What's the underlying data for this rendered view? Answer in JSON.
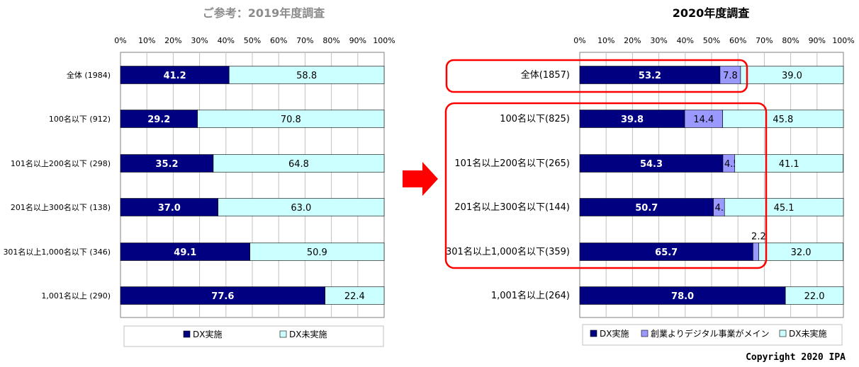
{
  "chart_data": [
    {
      "type": "bar",
      "orientation": "horizontal",
      "stacked": true,
      "title": "ご参考：2019年度調査",
      "x_ticks": [
        "0%",
        "10%",
        "20%",
        "30%",
        "40%",
        "50%",
        "60%",
        "70%",
        "80%",
        "90%",
        "100%"
      ],
      "xlim": [
        0,
        100
      ],
      "grid": true,
      "categories": [
        "全体 (1984)",
        "100名以下 (912)",
        "101名以上200名以下 (298)",
        "201名以上300名以下 (138)",
        "301名以上1,000名以下 (346)",
        "1,001名以上 (290)"
      ],
      "series": [
        {
          "name": "DX実施",
          "color": "#000080",
          "values": [
            41.2,
            29.2,
            35.2,
            37.0,
            49.1,
            77.6
          ],
          "labels": [
            "41.2",
            "29.2",
            "35.2",
            "37.0",
            "49.1",
            "77.6"
          ]
        },
        {
          "name": "DX未実施",
          "color": "#ccffff",
          "values": [
            58.8,
            70.8,
            64.8,
            63.0,
            50.9,
            22.4
          ],
          "labels": [
            "58.8",
            "70.8",
            "64.8",
            "63.0",
            "50.9",
            "22.4"
          ]
        }
      ],
      "legend_position": "bottom"
    },
    {
      "type": "bar",
      "orientation": "horizontal",
      "stacked": true,
      "title": "2020年度調査",
      "x_ticks": [
        "0%",
        "10%",
        "20%",
        "30%",
        "40%",
        "50%",
        "60%",
        "70%",
        "80%",
        "90%",
        "100%"
      ],
      "xlim": [
        0,
        100
      ],
      "grid": true,
      "categories": [
        "全体(1857)",
        "100名以下(825)",
        "101名以上200名以下(265)",
        "201名以上300名以下(144)",
        "301名以上1,000名以下(359)",
        "1,001名以上(264)"
      ],
      "series": [
        {
          "name": "DX実施",
          "color": "#000080",
          "values": [
            53.2,
            39.8,
            54.3,
            50.7,
            65.7,
            78.0
          ],
          "labels": [
            "53.2",
            "39.8",
            "54.3",
            "50.7",
            "65.7",
            "78.0"
          ]
        },
        {
          "name": "創業よりデジタル事業がメイン",
          "color": "#9999ff",
          "values": [
            7.8,
            14.4,
            4.5,
            4.2,
            2.2,
            0
          ],
          "labels": [
            "7.8",
            "14.4",
            "4.5",
            "4.2",
            "2.2",
            ""
          ]
        },
        {
          "name": "DX未実施",
          "color": "#ccffff",
          "values": [
            39.0,
            45.8,
            41.1,
            45.1,
            32.0,
            22.0
          ],
          "labels": [
            "39.0",
            "45.8",
            "41.1",
            "45.1",
            "32.0",
            "22.0"
          ]
        }
      ],
      "legend_position": "bottom"
    }
  ],
  "colors": {
    "highlight": "#ff0000",
    "arrow": "#ff0000",
    "grid": "#c0c0c0"
  },
  "copyright": "Copyright 2020 IPA"
}
